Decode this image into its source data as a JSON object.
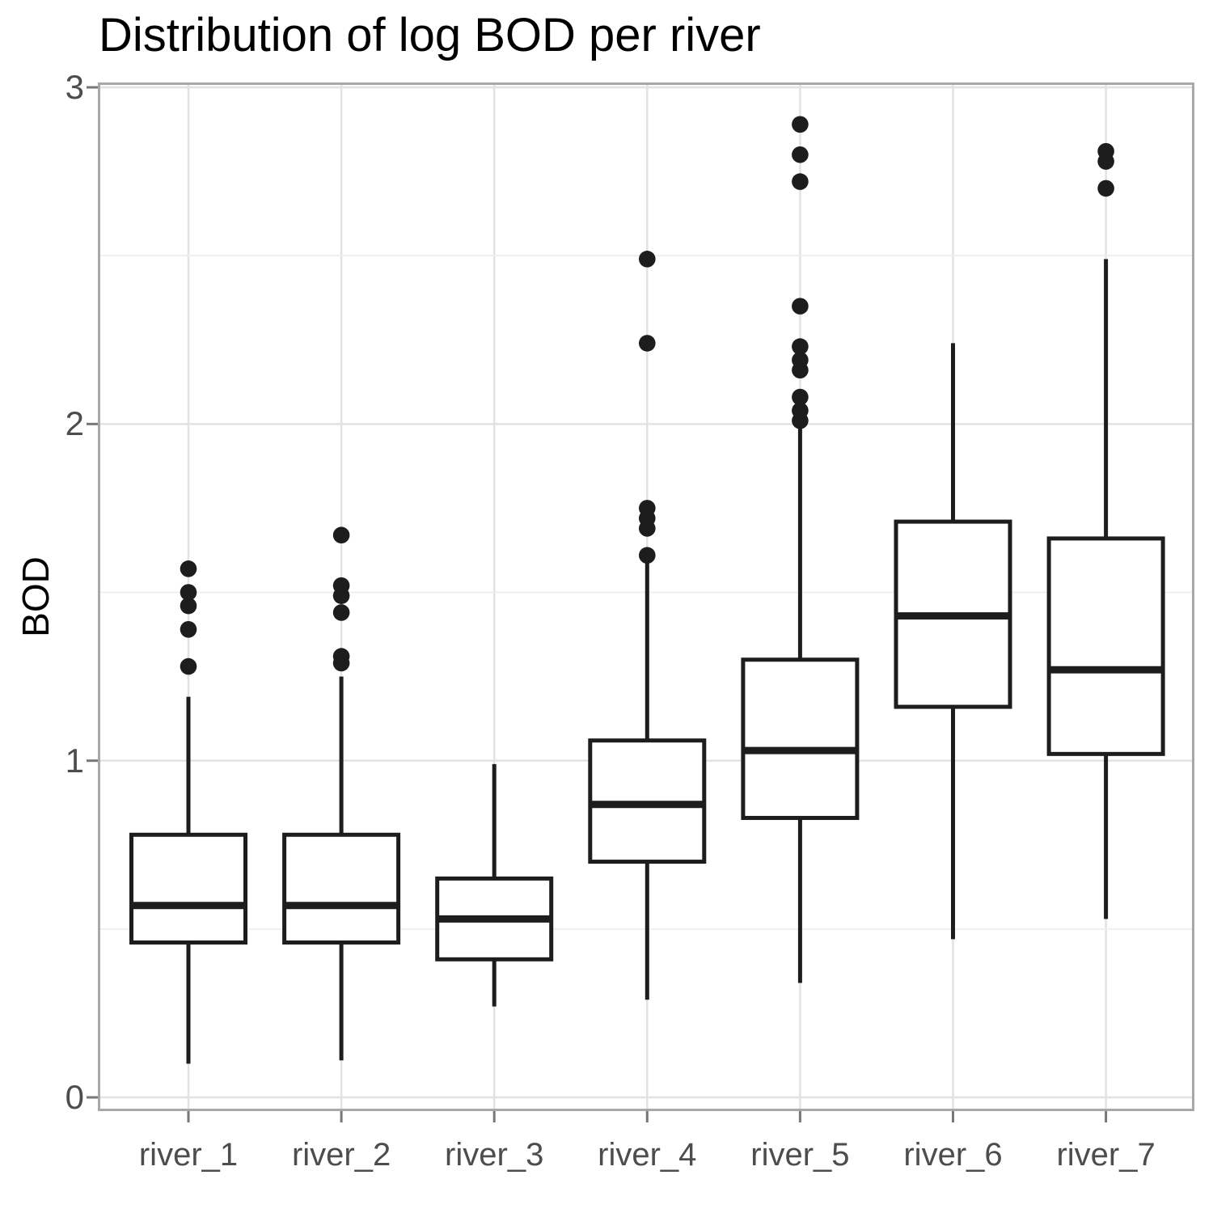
{
  "page": {
    "background": "#ffffff"
  },
  "colors": {
    "background": "#ffffff",
    "panel_background": "#ffffff",
    "panel_border": "#a8a8a8",
    "grid_major": "#e2e2e2",
    "grid_minor": "#efefef",
    "axis_tick": "#777777",
    "tick_label": "#4d4d4d",
    "title_text": "#000000",
    "box_stroke": "#1d1d1d",
    "box_fill": "#ffffff",
    "outlier_fill": "#1d1d1d"
  },
  "chart_data": {
    "type": "boxplot",
    "title": "Distribution of log BOD per river",
    "subtitle": "",
    "xlabel": "",
    "ylabel": "BOD",
    "grid": true,
    "legend": false,
    "categories": [
      "river_1",
      "river_2",
      "river_3",
      "river_4",
      "river_5",
      "river_6",
      "river_7"
    ],
    "y_ticks": [
      0,
      1,
      2,
      3
    ],
    "y_tick_labels": [
      "0",
      "1",
      "2",
      "3"
    ],
    "y_minor_ticks": [
      0.5,
      1.5,
      2.5
    ],
    "ylim": [
      -0.04,
      3.01
    ],
    "series": [
      {
        "name": "river_1",
        "whisker_low": 0.1,
        "q1": 0.46,
        "median": 0.57,
        "q3": 0.78,
        "whisker_high": 1.19,
        "outliers": [
          1.28,
          1.39,
          1.46,
          1.5,
          1.57
        ]
      },
      {
        "name": "river_2",
        "whisker_low": 0.11,
        "q1": 0.46,
        "median": 0.57,
        "q3": 0.78,
        "whisker_high": 1.25,
        "outliers": [
          1.29,
          1.31,
          1.44,
          1.49,
          1.52,
          1.67
        ]
      },
      {
        "name": "river_3",
        "whisker_low": 0.27,
        "q1": 0.41,
        "median": 0.53,
        "q3": 0.65,
        "whisker_high": 0.99,
        "outliers": []
      },
      {
        "name": "river_4",
        "whisker_low": 0.29,
        "q1": 0.7,
        "median": 0.87,
        "q3": 1.06,
        "whisker_high": 1.59,
        "outliers": [
          1.61,
          1.69,
          1.72,
          1.75,
          2.24,
          2.49
        ]
      },
      {
        "name": "river_5",
        "whisker_low": 0.34,
        "q1": 0.83,
        "median": 1.03,
        "q3": 1.3,
        "whisker_high": 2.0,
        "outliers": [
          2.01,
          2.04,
          2.08,
          2.16,
          2.19,
          2.23,
          2.35,
          2.72,
          2.8,
          2.89
        ]
      },
      {
        "name": "river_6",
        "whisker_low": 0.47,
        "q1": 1.16,
        "median": 1.43,
        "q3": 1.71,
        "whisker_high": 2.24,
        "outliers": []
      },
      {
        "name": "river_7",
        "whisker_low": 0.53,
        "q1": 1.02,
        "median": 1.27,
        "q3": 1.66,
        "whisker_high": 2.49,
        "outliers": [
          2.7,
          2.78,
          2.81
        ]
      }
    ]
  }
}
